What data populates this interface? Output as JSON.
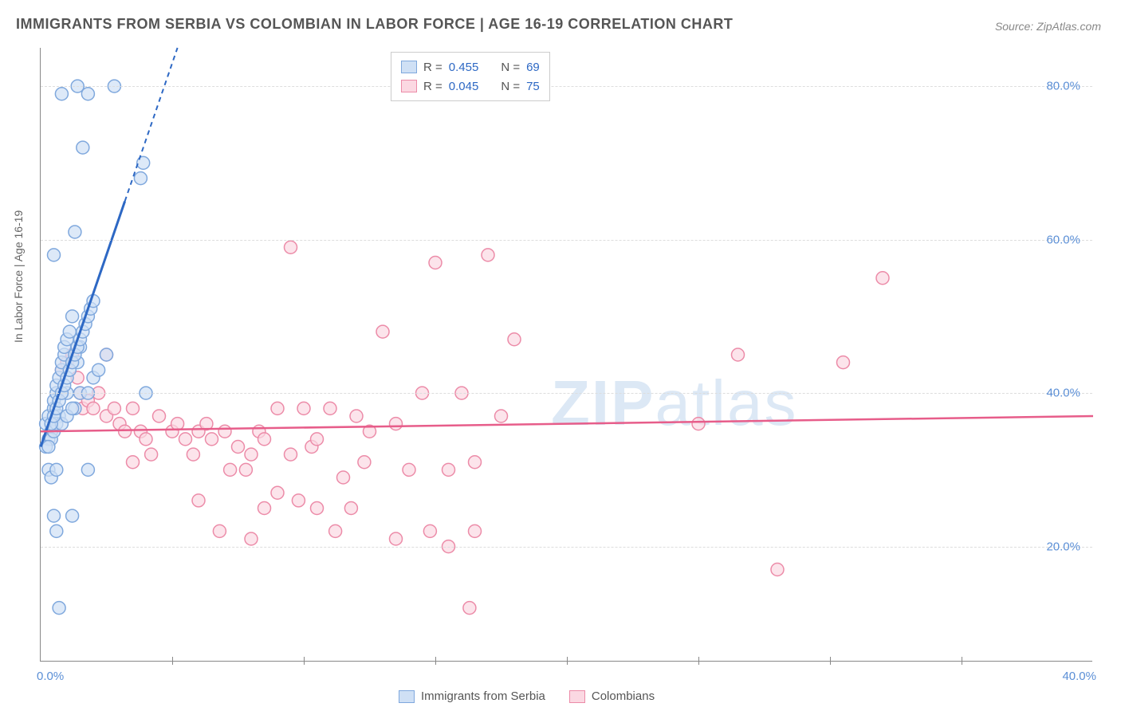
{
  "title": "IMMIGRANTS FROM SERBIA VS COLOMBIAN IN LABOR FORCE | AGE 16-19 CORRELATION CHART",
  "source": "Source: ZipAtlas.com",
  "ylabel": "In Labor Force | Age 16-19",
  "watermark_a": "ZIP",
  "watermark_b": "atlas",
  "chart": {
    "type": "scatter",
    "xlim": [
      0,
      40
    ],
    "ylim": [
      5,
      85
    ],
    "x_ticks": [
      0,
      40
    ],
    "x_tick_labels": [
      "0.0%",
      "40.0%"
    ],
    "x_minor_ticks": [
      5,
      10,
      15,
      20,
      25,
      30,
      35
    ],
    "y_ticks": [
      20,
      40,
      60,
      80
    ],
    "y_tick_labels": [
      "20.0%",
      "40.0%",
      "60.0%",
      "80.0%"
    ],
    "background_color": "#ffffff",
    "grid_color": "#dddddd",
    "axis_color": "#888888",
    "marker_radius": 8,
    "marker_stroke_width": 1.5,
    "series": [
      {
        "name": "Immigrants from Serbia",
        "key": "serbia",
        "fill": "#cfe0f5",
        "stroke": "#7fa8dd",
        "line_color": "#2d68c4",
        "r_label": "R = ",
        "r_value": "0.455",
        "n_label": "N = ",
        "n_value": "69",
        "trend": {
          "x1": 0,
          "y1": 33,
          "x2": 5.2,
          "y2": 85
        },
        "trend_dashed_from_x": 3.2,
        "points": [
          [
            0.2,
            36
          ],
          [
            0.3,
            37
          ],
          [
            0.4,
            35
          ],
          [
            0.5,
            38
          ],
          [
            0.5,
            39
          ],
          [
            0.6,
            40
          ],
          [
            0.6,
            41
          ],
          [
            0.7,
            37
          ],
          [
            0.7,
            42
          ],
          [
            0.8,
            43
          ],
          [
            0.8,
            44
          ],
          [
            0.9,
            45
          ],
          [
            0.9,
            46
          ],
          [
            1.0,
            47
          ],
          [
            1.0,
            40
          ],
          [
            1.1,
            48
          ],
          [
            1.2,
            50
          ],
          [
            1.3,
            38
          ],
          [
            1.4,
            44
          ],
          [
            1.5,
            46
          ],
          [
            0.3,
            30
          ],
          [
            0.4,
            29
          ],
          [
            0.6,
            30
          ],
          [
            1.8,
            30
          ],
          [
            0.3,
            34
          ],
          [
            0.4,
            34
          ],
          [
            0.5,
            35
          ],
          [
            0.6,
            36
          ],
          [
            0.8,
            36
          ],
          [
            1.0,
            37
          ],
          [
            1.2,
            38
          ],
          [
            1.5,
            40
          ],
          [
            1.8,
            40
          ],
          [
            2.0,
            42
          ],
          [
            2.2,
            43
          ],
          [
            4.0,
            40
          ],
          [
            0.5,
            24
          ],
          [
            1.2,
            24
          ],
          [
            0.6,
            22
          ],
          [
            0.7,
            12
          ],
          [
            0.5,
            58
          ],
          [
            1.3,
            61
          ],
          [
            1.6,
            72
          ],
          [
            3.8,
            68
          ],
          [
            3.9,
            70
          ],
          [
            0.8,
            79
          ],
          [
            1.4,
            80
          ],
          [
            1.8,
            79
          ],
          [
            2.8,
            80
          ],
          [
            0.2,
            33
          ],
          [
            0.3,
            33
          ],
          [
            0.4,
            36
          ],
          [
            0.5,
            37
          ],
          [
            0.6,
            38
          ],
          [
            0.7,
            39
          ],
          [
            0.8,
            40
          ],
          [
            0.9,
            41
          ],
          [
            1.0,
            42
          ],
          [
            1.1,
            43
          ],
          [
            1.2,
            44
          ],
          [
            1.3,
            45
          ],
          [
            1.4,
            46
          ],
          [
            1.5,
            47
          ],
          [
            1.6,
            48
          ],
          [
            1.7,
            49
          ],
          [
            1.8,
            50
          ],
          [
            1.9,
            51
          ],
          [
            2.0,
            52
          ],
          [
            2.5,
            45
          ]
        ]
      },
      {
        "name": "Colombians",
        "key": "colombians",
        "fill": "#fbd8e2",
        "stroke": "#ec8ba8",
        "line_color": "#e75d8a",
        "r_label": "R = ",
        "r_value": "0.045",
        "n_label": "N = ",
        "n_value": "75",
        "trend": {
          "x1": 0,
          "y1": 35,
          "x2": 40,
          "y2": 37
        },
        "points": [
          [
            0.8,
            43
          ],
          [
            1.0,
            44
          ],
          [
            1.2,
            45
          ],
          [
            1.4,
            42
          ],
          [
            1.5,
            40
          ],
          [
            1.6,
            38
          ],
          [
            1.8,
            39
          ],
          [
            2.0,
            38
          ],
          [
            2.2,
            40
          ],
          [
            2.5,
            37
          ],
          [
            2.8,
            38
          ],
          [
            3.0,
            36
          ],
          [
            3.2,
            35
          ],
          [
            3.5,
            38
          ],
          [
            3.8,
            35
          ],
          [
            4.0,
            34
          ],
          [
            4.5,
            37
          ],
          [
            5.0,
            35
          ],
          [
            5.2,
            36
          ],
          [
            5.5,
            34
          ],
          [
            6.0,
            35
          ],
          [
            6.3,
            36
          ],
          [
            6.5,
            34
          ],
          [
            7.0,
            35
          ],
          [
            7.2,
            30
          ],
          [
            7.5,
            33
          ],
          [
            8.0,
            32
          ],
          [
            8.3,
            35
          ],
          [
            8.5,
            34
          ],
          [
            9.0,
            38
          ],
          [
            9.5,
            32
          ],
          [
            10.0,
            38
          ],
          [
            10.3,
            33
          ],
          [
            10.5,
            34
          ],
          [
            11.0,
            38
          ],
          [
            11.5,
            29
          ],
          [
            12.0,
            37
          ],
          [
            12.3,
            31
          ],
          [
            12.5,
            35
          ],
          [
            13.0,
            48
          ],
          [
            13.5,
            36
          ],
          [
            14.0,
            30
          ],
          [
            14.5,
            40
          ],
          [
            15.0,
            57
          ],
          [
            15.5,
            30
          ],
          [
            16.0,
            40
          ],
          [
            16.3,
            12
          ],
          [
            16.5,
            31
          ],
          [
            17.0,
            58
          ],
          [
            17.5,
            37
          ],
          [
            18.0,
            47
          ],
          [
            6.0,
            26
          ],
          [
            6.8,
            22
          ],
          [
            8.0,
            21
          ],
          [
            8.5,
            25
          ],
          [
            9.0,
            27
          ],
          [
            9.8,
            26
          ],
          [
            10.5,
            25
          ],
          [
            11.2,
            22
          ],
          [
            11.8,
            25
          ],
          [
            13.5,
            21
          ],
          [
            14.8,
            22
          ],
          [
            15.5,
            20
          ],
          [
            16.5,
            22
          ],
          [
            9.5,
            59
          ],
          [
            25.0,
            36
          ],
          [
            26.5,
            45
          ],
          [
            28.0,
            17
          ],
          [
            30.5,
            44
          ],
          [
            32.0,
            55
          ],
          [
            3.5,
            31
          ],
          [
            4.2,
            32
          ],
          [
            5.8,
            32
          ],
          [
            7.8,
            30
          ],
          [
            2.5,
            45
          ]
        ]
      }
    ],
    "legend_bottom": [
      {
        "label": "Immigrants from Serbia",
        "fill": "#cfe0f5",
        "stroke": "#7fa8dd"
      },
      {
        "label": "Colombians",
        "fill": "#fbd8e2",
        "stroke": "#ec8ba8"
      }
    ]
  }
}
